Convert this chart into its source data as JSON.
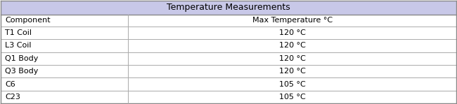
{
  "title": "Temperature Measurements",
  "header": [
    "Component",
    "Max Temperature °C"
  ],
  "rows": [
    [
      "T1 Coil",
      "120 °C"
    ],
    [
      "L3 Coil",
      "120 °C"
    ],
    [
      "Q1 Body",
      "120 °C"
    ],
    [
      "Q3 Body",
      "120 °C"
    ],
    [
      "C6",
      "105 °C"
    ],
    [
      "C23",
      "105 °C"
    ]
  ],
  "header_bg": "#c8c8e8",
  "col_split": 0.28,
  "outer_border_color": "#888888",
  "line_color": "#aaaaaa",
  "title_fontsize": 9,
  "cell_fontsize": 8,
  "background_color": "#ffffff"
}
